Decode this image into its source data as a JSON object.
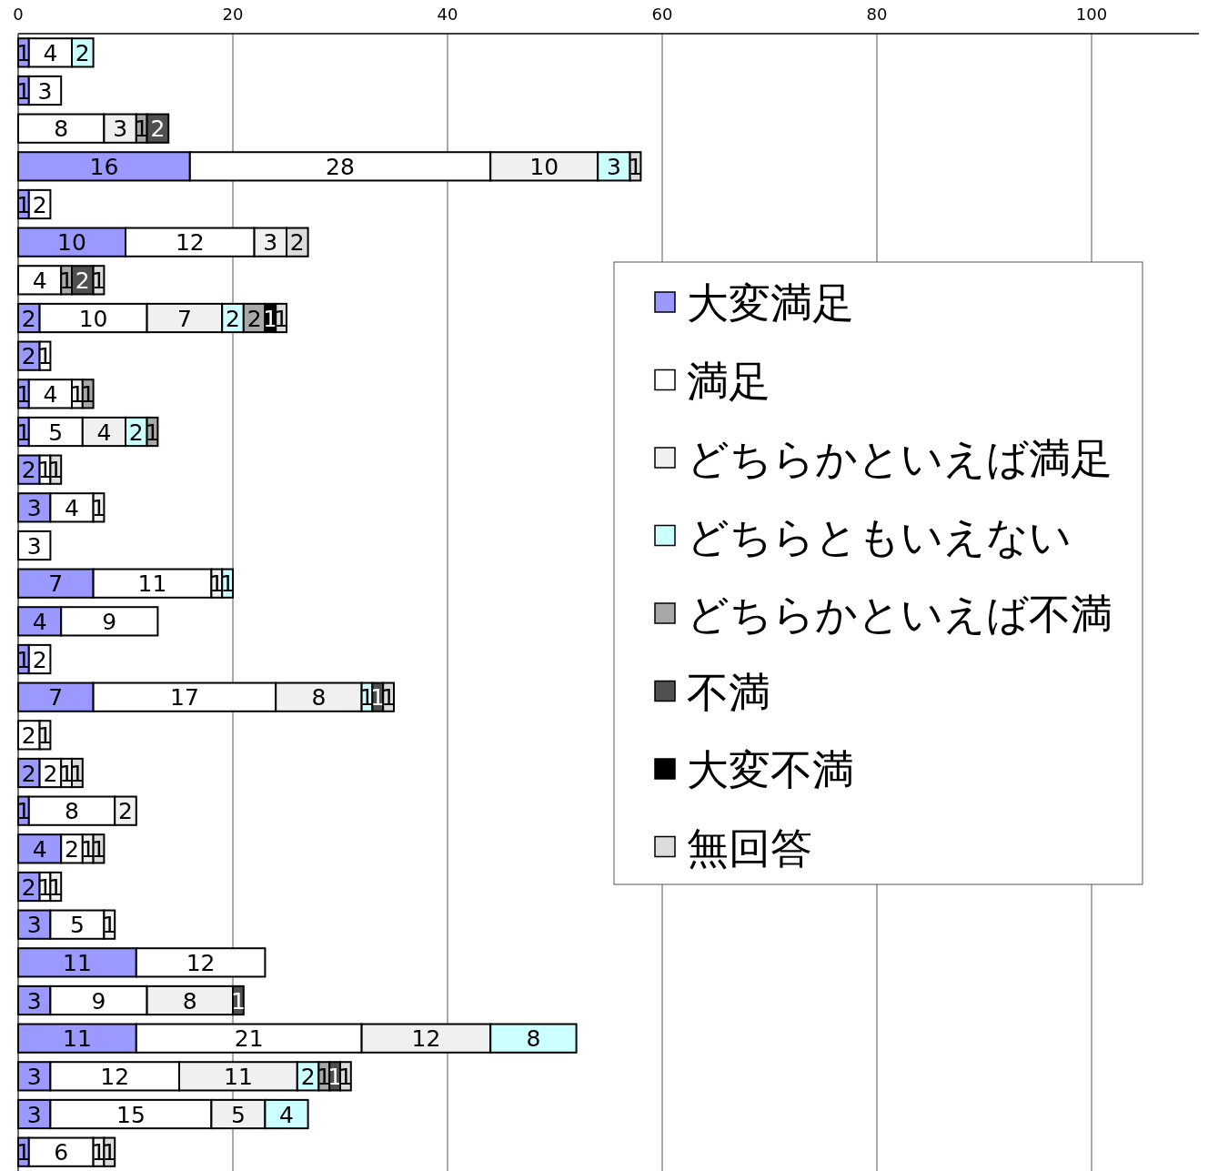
{
  "chart_data": {
    "type": "bar",
    "orientation": "horizontal",
    "stacked": true,
    "data_labels": true,
    "grid": "x",
    "legend": "right",
    "categories": [
      null,
      null,
      null,
      null,
      null,
      null,
      null,
      null,
      null,
      null,
      null,
      null,
      null,
      null,
      null,
      null,
      null,
      null,
      null,
      null,
      null,
      null,
      null,
      null,
      null,
      null,
      null,
      null,
      null,
      null
    ],
    "xlim": [
      0,
      110
    ],
    "xticks": [
      0,
      20,
      40,
      60,
      80,
      100
    ],
    "series": [
      {
        "name": "大変満足",
        "color": "#9999ff",
        "values": [
          1,
          1,
          null,
          16,
          1,
          10,
          null,
          2,
          2,
          1,
          1,
          2,
          3,
          null,
          7,
          4,
          1,
          7,
          null,
          2,
          1,
          4,
          2,
          3,
          11,
          3,
          11,
          3,
          3,
          1
        ]
      },
      {
        "name": "満足",
        "color": "#ffffff",
        "values": [
          4,
          3,
          8,
          28,
          2,
          12,
          4,
          10,
          1,
          4,
          5,
          1,
          4,
          3,
          11,
          9,
          2,
          17,
          2,
          2,
          8,
          2,
          1,
          5,
          12,
          9,
          21,
          12,
          15,
          6
        ]
      },
      {
        "name": "どちらかといえば満足",
        "color": "#f0f0f0",
        "values": [
          null,
          null,
          3,
          10,
          null,
          3,
          null,
          7,
          null,
          1,
          4,
          null,
          1,
          null,
          1,
          null,
          null,
          8,
          1,
          1,
          2,
          1,
          1,
          1,
          null,
          8,
          12,
          11,
          5,
          1
        ]
      },
      {
        "name": "どちらともいえない",
        "color": "#ccffff",
        "values": [
          2,
          null,
          null,
          3,
          null,
          null,
          null,
          2,
          null,
          null,
          2,
          null,
          null,
          null,
          1,
          null,
          null,
          1,
          null,
          null,
          null,
          null,
          null,
          null,
          null,
          null,
          8,
          2,
          4,
          null
        ]
      },
      {
        "name": "どちらかといえば不満",
        "color": "#a8a8a8",
        "values": [
          null,
          null,
          1,
          null,
          null,
          null,
          1,
          2,
          null,
          1,
          1,
          null,
          null,
          null,
          null,
          null,
          null,
          null,
          null,
          null,
          null,
          null,
          null,
          null,
          null,
          null,
          null,
          1,
          null,
          null
        ]
      },
      {
        "name": "不満",
        "color": "#505050",
        "values": [
          null,
          null,
          2,
          null,
          null,
          null,
          2,
          null,
          null,
          null,
          null,
          null,
          null,
          null,
          null,
          null,
          null,
          1,
          null,
          null,
          null,
          null,
          null,
          null,
          null,
          1,
          null,
          1,
          null,
          null
        ]
      },
      {
        "name": "大変不満",
        "color": "#000000",
        "values": [
          null,
          null,
          null,
          null,
          null,
          null,
          null,
          1,
          null,
          null,
          null,
          null,
          null,
          null,
          null,
          null,
          null,
          null,
          null,
          null,
          null,
          null,
          null,
          null,
          null,
          null,
          null,
          null,
          null,
          null
        ]
      },
      {
        "name": "無回答",
        "color": "#dcdcdc",
        "values": [
          null,
          null,
          null,
          1,
          null,
          2,
          1,
          1,
          null,
          null,
          null,
          1,
          null,
          null,
          null,
          null,
          null,
          1,
          null,
          1,
          null,
          1,
          null,
          null,
          null,
          null,
          null,
          1,
          null,
          1
        ]
      }
    ]
  }
}
